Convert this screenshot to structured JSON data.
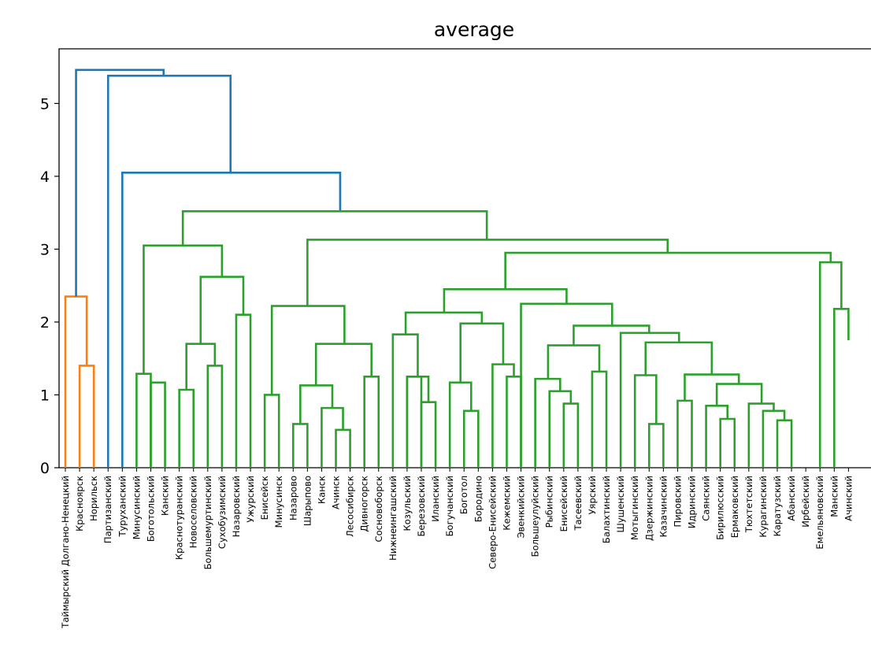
{
  "chart_data": {
    "type": "dendrogram",
    "title": "average",
    "xlabel": "",
    "ylabel": "",
    "ylim": [
      0,
      5.75
    ],
    "yticks": [
      0,
      1,
      2,
      3,
      4,
      5
    ],
    "leaves": [
      "Таймырский Долгано-Ненецкий",
      "Красноярск",
      "Норильск",
      "Партизанский",
      "Туруханский",
      "Минусинский",
      "Боготольский",
      "Канский",
      "Краснотуранский",
      "Новоселовский",
      "Большемуртинский",
      "Сухобузимский",
      "Назаровский",
      "Ужурский",
      "Енисейск",
      "Минусинск",
      "Назарово",
      "Шарыпово",
      "Канск",
      "Ачинск",
      "Лесосибирск",
      "Дивногорск",
      "Сосновоборск",
      "Нижнеингашский",
      "Козульский",
      "Березовский",
      "Иланский",
      "Богучанский",
      "Боготол",
      "Бородино",
      "Северо-Енисейский",
      "Кежемский",
      "Эвенкийский",
      "Большеулуйский",
      "Рыбинский",
      "Енисейский",
      "Тасеевский",
      "Уярский",
      "Балахтинский",
      "Шушенский",
      "Мотыгинский",
      "Дзержинский",
      "Казачинский",
      "Пировский",
      "Идринский",
      "Саянский",
      "Бирилюсский",
      "Ермаковский",
      "Тюхтетский",
      "Курагинский",
      "Каратузский",
      "Абанский",
      "Ирбейский",
      "Емельяновский",
      "Манский",
      "Ачинский"
    ],
    "links": [
      {
        "color": "#ff7f0e",
        "x": [
          8,
          8,
          18,
          18
        ],
        "y": [
          0,
          1.4,
          1.4,
          0
        ]
      },
      {
        "color": "#ff7f0e",
        "x": [
          -7,
          -7,
          13,
          13
        ],
        "y": [
          0,
          2.35,
          2.35,
          0
        ]
      },
      {
        "color": "#2ca02c",
        "x": [
          58,
          58,
          68,
          68
        ],
        "y": [
          0,
          1.29,
          1.29,
          0
        ]
      },
      {
        "color": "#2ca02c",
        "x": [
          93,
          93,
          103,
          103
        ],
        "y": [
          0,
          1.07,
          1.07,
          0
        ]
      },
      {
        "color": "#2ca02c",
        "x": [
          103,
          103,
          113,
          113
        ],
        "y": [
          0,
          1.4,
          1.4,
          0
        ]
      },
      {
        "color": "#2ca02c",
        "x": [
          78,
          78,
          108,
          108
        ],
        "y": [
          0,
          1.7,
          1.7,
          0
        ]
      },
      {
        "color": "#2ca02c",
        "x": [
          63,
          63,
          93,
          93
        ],
        "y": [
          1.29,
          2.62,
          2.62,
          2.1
        ]
      },
      {
        "color": "#2ca02c",
        "x": [
          123,
          123,
          133,
          133
        ],
        "y": [
          0,
          2.1,
          2.1,
          0
        ]
      },
      {
        "color": "#2ca02c",
        "x": [
          13,
          13,
          98,
          98
        ],
        "y": [
          1.2,
          3.05,
          3.05,
          2.62
        ]
      },
      {
        "color": "#2ca02c",
        "x": [
          143,
          143,
          153,
          153
        ],
        "y": [
          0,
          1.0,
          1.0,
          0
        ]
      },
      {
        "color": "#2ca02c",
        "x": [
          163,
          163,
          173,
          173
        ],
        "y": [
          0,
          0.6,
          0.6,
          0
        ]
      },
      {
        "color": "#2ca02c",
        "x": [
          183,
          183,
          193,
          193
        ],
        "y": [
          0,
          0.52,
          0.52,
          0
        ]
      },
      {
        "color": "#2ca02c",
        "x": [
          178,
          178,
          188,
          188
        ],
        "y": [
          0,
          0.82,
          0.82,
          0
        ]
      },
      {
        "color": "#2ca02c",
        "x": [
          168,
          168,
          183,
          183
        ],
        "y": [
          0.6,
          1.13,
          1.13,
          0.82
        ]
      },
      {
        "color": "#2ca02c",
        "x": [
          203,
          203,
          213,
          213
        ],
        "y": [
          0,
          1.25,
          1.25,
          0
        ]
      },
      {
        "color": "#2ca02c",
        "x": [
          175,
          175,
          208,
          208
        ],
        "y": [
          1.13,
          1.7,
          1.7,
          1.25
        ]
      },
      {
        "color": "#2ca02c",
        "x": [
          148,
          148,
          191,
          191
        ],
        "y": [
          1.0,
          2.22,
          2.22,
          1.7
        ]
      },
      {
        "color": "#2ca02c",
        "x": [
          233,
          233,
          243,
          243
        ],
        "y": [
          0,
          1.25,
          1.25,
          0
        ]
      },
      {
        "color": "#2ca02c",
        "x": [
          253,
          253,
          263,
          263
        ],
        "y": [
          0,
          0.9,
          0.9,
          0
        ]
      },
      {
        "color": "#2ca02c",
        "x": [
          238,
          238,
          258,
          258
        ],
        "y": [
          1.25,
          1.25,
          1.25,
          0.9
        ]
      },
      {
        "color": "#2ca02c",
        "x": [
          223,
          223,
          248,
          248
        ],
        "y": [
          0,
          1.83,
          1.83,
          1.25
        ]
      },
      {
        "color": "#2ca02c",
        "x": [
          273,
          273,
          283,
          283
        ],
        "y": [
          0,
          1.17,
          1.17,
          0
        ]
      },
      {
        "color": "#2ca02c",
        "x": [
          293,
          293,
          303,
          303
        ],
        "y": [
          0,
          0.78,
          0.78,
          0
        ]
      },
      {
        "color": "#2ca02c",
        "x": [
          278,
          278,
          298,
          298
        ],
        "y": [
          1.17,
          1.17,
          1.17,
          0.78
        ]
      },
      {
        "color": "#2ca02c",
        "x": [
          313,
          313,
          323,
          323
        ],
        "y": [
          0,
          1.42,
          1.42,
          1.25
        ]
      },
      {
        "color": "#2ca02c",
        "x": [
          288,
          288,
          318,
          318
        ],
        "y": [
          1.17,
          1.98,
          1.98,
          1.42
        ]
      },
      {
        "color": "#2ca02c",
        "x": [
          236,
          236,
          303,
          303
        ],
        "y": [
          1.83,
          2.13,
          2.13,
          1.98
        ]
      }
    ]
  },
  "labels": {
    "title": "average"
  }
}
